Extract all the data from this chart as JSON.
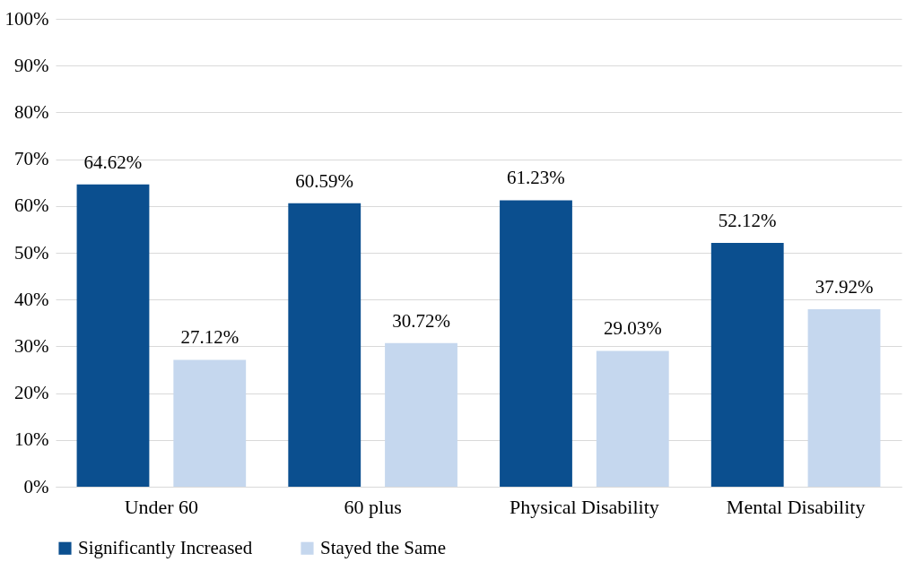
{
  "chart_data": {
    "type": "bar",
    "categories": [
      "Under 60",
      "60 plus",
      "Physical Disability",
      "Mental Disability"
    ],
    "series": [
      {
        "name": "Significantly Increased",
        "color": "#0b4f8f",
        "values": [
          64.62,
          60.59,
          61.23,
          52.12
        ],
        "value_labels": [
          "64.62%",
          "60.59%",
          "61.23%",
          "52.12%"
        ]
      },
      {
        "name": "Stayed the Same",
        "color": "#c5d7ee",
        "values": [
          27.12,
          30.72,
          29.03,
          37.92
        ],
        "value_labels": [
          "27.12%",
          "30.72%",
          "29.03%",
          "37.92%"
        ]
      }
    ],
    "ylim": [
      0,
      100
    ],
    "yticks": [
      {
        "value": 0,
        "label": "0%"
      },
      {
        "value": 10,
        "label": "10%"
      },
      {
        "value": 20,
        "label": "20%"
      },
      {
        "value": 30,
        "label": "30%"
      },
      {
        "value": 40,
        "label": "40%"
      },
      {
        "value": 50,
        "label": "50%"
      },
      {
        "value": 60,
        "label": "60%"
      },
      {
        "value": 70,
        "label": "70%"
      },
      {
        "value": 80,
        "label": "80%"
      },
      {
        "value": 90,
        "label": "90%"
      },
      {
        "value": 100,
        "label": "100%"
      }
    ],
    "grid": "y",
    "legend": "bottom"
  }
}
